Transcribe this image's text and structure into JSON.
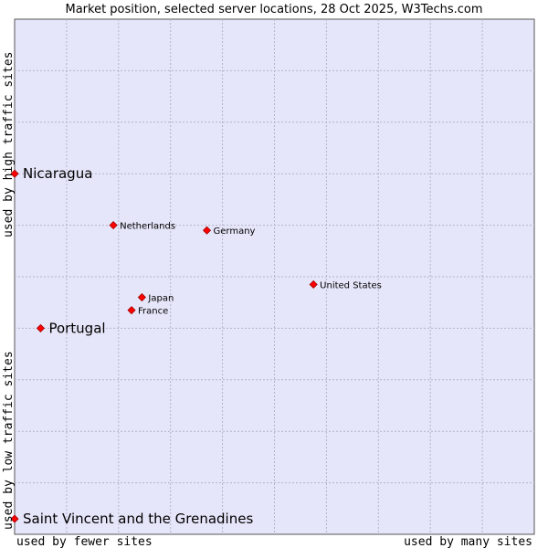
{
  "chart_data": {
    "type": "scatter",
    "title": "Market position, selected server locations, 28 Oct 2025, W3Techs.com",
    "xlabel_left": "used by fewer sites",
    "xlabel_right": "used by many sites",
    "ylabel_bottom": "used by low traffic sites",
    "ylabel_top": "used by high traffic sites",
    "xlim": [
      0,
      100
    ],
    "ylim": [
      0,
      100
    ],
    "grid": true,
    "plot_background": "#e6e6fa",
    "grid_color": "#b4b4c8",
    "marker_color": "#ff0000",
    "points": [
      {
        "name": "Nicaragua",
        "x": 0,
        "y": 70,
        "highlight": true
      },
      {
        "name": "Netherlands",
        "x": 19,
        "y": 60,
        "highlight": false
      },
      {
        "name": "Germany",
        "x": 37,
        "y": 59,
        "highlight": false
      },
      {
        "name": "United States",
        "x": 57.5,
        "y": 48.5,
        "highlight": false
      },
      {
        "name": "Japan",
        "x": 24.5,
        "y": 46,
        "highlight": false
      },
      {
        "name": "France",
        "x": 22.5,
        "y": 43.5,
        "highlight": false
      },
      {
        "name": "Portugal",
        "x": 5,
        "y": 40,
        "highlight": true
      },
      {
        "name": "Saint Vincent and the Grenadines",
        "x": 0,
        "y": 3,
        "highlight": true
      }
    ]
  }
}
